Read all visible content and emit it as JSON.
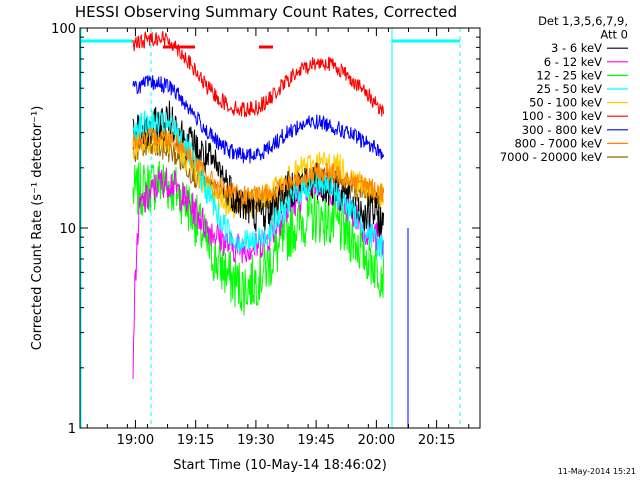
{
  "chart_data": {
    "type": "line",
    "title": "HESSI Observing Summary Count Rates, Corrected",
    "xlabel": "Start Time (10-May-14 18:46:02)",
    "ylabel": "Corrected Count Rate (s⁻¹ detector⁻¹)",
    "yscale": "log",
    "ylim": [
      1,
      100
    ],
    "yticks": [
      {
        "value": 1,
        "label": "1"
      },
      {
        "value": 10,
        "label": "10"
      },
      {
        "value": 100,
        "label": "100"
      }
    ],
    "xlim_minutes": [
      18.77,
      20.43
    ],
    "xticks": [
      {
        "value": 19.0,
        "label": "19:00"
      },
      {
        "value": 19.25,
        "label": "19:15"
      },
      {
        "value": 19.5,
        "label": "19:30"
      },
      {
        "value": 19.75,
        "label": "19:45"
      },
      {
        "value": 20.0,
        "label": "20:00"
      },
      {
        "value": 20.25,
        "label": "20:15"
      }
    ],
    "legend_header": [
      "Det 1,3,5,6,7,9,",
      "Att 0"
    ],
    "legend_position": "top-right outside",
    "grid": false,
    "timestamp": "11-May-2014 15:21",
    "series": [
      {
        "name": "3 - 6 keV",
        "color": "#000000",
        "x": [
          18.99,
          19.05,
          19.1,
          19.15,
          19.2,
          19.25,
          19.3,
          19.35,
          19.4,
          19.45,
          19.5,
          19.55,
          19.6,
          19.65,
          19.7,
          19.75,
          19.8,
          19.85,
          19.9,
          19.95,
          20.0,
          20.03
        ],
        "y": [
          30,
          30,
          33,
          35,
          28,
          25,
          22,
          19,
          15,
          13,
          12,
          12,
          14,
          16,
          17,
          17,
          16,
          15,
          13,
          12,
          12,
          10
        ]
      },
      {
        "name": "6 - 12 keV",
        "color": "#ff00ff",
        "x": [
          18.99,
          19.02,
          19.05,
          19.1,
          19.15,
          19.2,
          19.25,
          19.3,
          19.35,
          19.4,
          19.45,
          19.5,
          19.55,
          19.6,
          19.65,
          19.7,
          19.75,
          19.8,
          19.85,
          19.9,
          19.95,
          20.0,
          20.03
        ],
        "y": [
          2,
          13,
          14,
          17,
          17,
          14,
          12,
          10,
          9,
          8,
          8,
          8,
          9,
          11,
          13,
          15,
          17,
          16,
          14,
          12,
          10,
          9,
          8
        ]
      },
      {
        "name": "12 - 25 keV",
        "color": "#00ff00",
        "x": [
          18.99,
          19.05,
          19.1,
          19.15,
          19.2,
          19.25,
          19.3,
          19.35,
          19.4,
          19.45,
          19.5,
          19.55,
          19.6,
          19.65,
          19.7,
          19.75,
          19.8,
          19.85,
          19.9,
          19.95,
          20.0,
          20.03
        ],
        "y": [
          15,
          16,
          17,
          16,
          14,
          11,
          8,
          6.5,
          5.5,
          5,
          5.5,
          6.5,
          8,
          10,
          11,
          11.5,
          11,
          10,
          9,
          7.5,
          6.5,
          6
        ]
      },
      {
        "name": "25 - 50 keV",
        "color": "#00ffff",
        "x": [
          18.99,
          19.05,
          19.1,
          19.15,
          19.2,
          19.25,
          19.3,
          19.35,
          19.4,
          19.45,
          19.5,
          19.55,
          19.6,
          19.65,
          19.7,
          19.75,
          19.8,
          19.85,
          19.9,
          19.95,
          20.0,
          20.03
        ],
        "y": [
          32,
          33,
          33,
          32,
          27,
          20,
          15,
          11,
          9,
          8.5,
          8.5,
          9.5,
          11.5,
          14,
          16,
          17,
          16,
          14,
          12,
          10,
          8.5,
          8
        ]
      },
      {
        "name": "50 - 100 keV",
        "color": "#ffcc00",
        "x": [
          18.99,
          19.05,
          19.1,
          19.15,
          19.2,
          19.25,
          19.3,
          19.35,
          19.4,
          19.45,
          19.5,
          19.55,
          19.6,
          19.65,
          19.7,
          19.75,
          19.8,
          19.85,
          19.9,
          19.95,
          20.0,
          20.03
        ],
        "y": [
          25,
          27,
          28,
          27,
          23,
          19,
          16,
          14,
          13,
          13,
          13.5,
          14.5,
          16,
          18,
          20,
          21,
          21,
          20,
          18,
          16,
          15,
          14
        ]
      },
      {
        "name": "100 - 300 keV",
        "color": "#ff0000",
        "x": [
          18.99,
          19.05,
          19.1,
          19.15,
          19.2,
          19.25,
          19.3,
          19.35,
          19.4,
          19.45,
          19.5,
          19.55,
          19.6,
          19.65,
          19.7,
          19.75,
          19.8,
          19.85,
          19.9,
          19.95,
          20.0,
          20.03
        ],
        "y": [
          82,
          88,
          90,
          85,
          73,
          60,
          50,
          44,
          40,
          39,
          40,
          43,
          50,
          57,
          63,
          67,
          67,
          62,
          55,
          48,
          42,
          38
        ]
      },
      {
        "name": "300 - 800 keV",
        "color": "#0000ff",
        "x": [
          18.99,
          19.05,
          19.1,
          19.15,
          19.2,
          19.25,
          19.3,
          19.35,
          19.4,
          19.45,
          19.5,
          19.55,
          19.6,
          19.65,
          19.7,
          19.75,
          19.8,
          19.85,
          19.9,
          19.95,
          20.0,
          20.03
        ],
        "y": [
          50,
          53,
          53,
          50,
          43,
          36,
          30,
          26,
          24,
          23,
          23,
          25,
          28,
          31,
          33,
          34,
          33,
          31,
          29,
          27,
          25,
          23
        ]
      },
      {
        "name": "800 - 7000 keV",
        "color": "#ff8800",
        "x": [
          18.99,
          19.05,
          19.1,
          19.15,
          19.2,
          19.25,
          19.3,
          19.35,
          19.4,
          19.45,
          19.5,
          19.55,
          19.6,
          19.65,
          19.7,
          19.75,
          19.8,
          19.85,
          19.9,
          19.95,
          20.0,
          20.03
        ],
        "y": [
          27,
          28,
          29,
          28,
          25,
          21,
          18,
          16,
          15,
          14.5,
          14.5,
          15,
          16,
          17,
          18,
          19,
          19,
          18.5,
          17.5,
          16.5,
          15.5,
          15
        ]
      },
      {
        "name": "7000 - 20000 keV",
        "color": "#996600",
        "x": [
          18.99,
          19.05,
          19.1,
          19.15,
          19.2,
          19.25,
          19.3,
          19.35,
          19.4,
          19.45,
          19.5,
          19.55,
          19.6,
          19.65,
          19.7,
          19.75,
          19.8,
          19.85,
          19.9,
          19.95,
          20.0,
          20.03
        ],
        "y": [
          24,
          25,
          25,
          24,
          21,
          18,
          16,
          14.5,
          14,
          13.5,
          13.5,
          14,
          15,
          16,
          17,
          17.5,
          17.5,
          17,
          16,
          15,
          14.5,
          14
        ]
      }
    ]
  }
}
